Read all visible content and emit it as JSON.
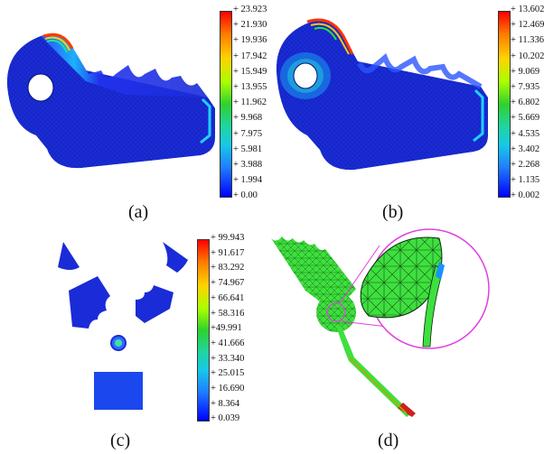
{
  "panels": {
    "a": {
      "caption": "(a)",
      "colorbar": [
        "+ 23.923",
        "+ 21.930",
        "+ 19.936",
        "+ 17.942",
        "+ 15.949",
        "+ 13.955",
        "+ 11.962",
        "+ 9.968",
        "+ 7.975",
        "+ 5.981",
        "+ 3.988",
        "+ 1.994",
        "+ 0.00"
      ]
    },
    "b": {
      "caption": "(b)",
      "colorbar": [
        "+ 13.602",
        "+ 12.469",
        "+ 11.336",
        "+ 10.202",
        "+ 9.069",
        "+ 7.935",
        "+ 6.802",
        "+ 5.669",
        "+ 4.535",
        "+ 3.402",
        "+ 2.268",
        "+ 1.135",
        "+ 0.002"
      ]
    },
    "c": {
      "caption": "(c)",
      "colorbar": [
        "+ 99.943",
        "+ 91.617",
        "+ 83.292",
        "+ 74.967",
        "+ 66.641",
        "+ 58.316",
        "+49.991",
        "+ 41.666",
        "+ 33.340",
        "+ 25.015",
        "+ 16.690",
        "+ 8.364",
        "+ 0.039"
      ]
    },
    "d": {
      "caption": "(d)"
    }
  },
  "colors": {
    "mesh_blue": "#1a2bd8",
    "mesh_green": "#3ee03e",
    "zoom_circle": "#e040e0"
  }
}
